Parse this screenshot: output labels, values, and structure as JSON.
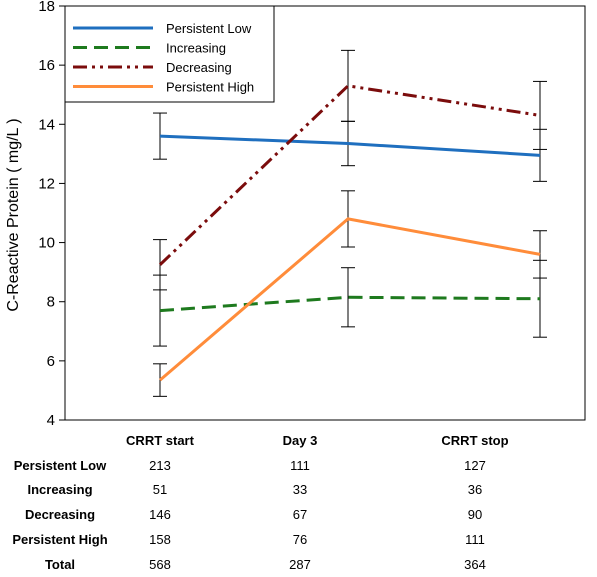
{
  "chart_data": {
    "type": "line",
    "title": "",
    "xlabel": "",
    "ylabel": "C-Reactive Protein ( mg/L )",
    "categories": [
      "CRRT start",
      "Day 3",
      "CRRT stop"
    ],
    "ylim": [
      4,
      18
    ],
    "yticks": [
      4,
      6,
      8,
      10,
      12,
      14,
      16,
      18
    ],
    "legend_position": "top-left",
    "series": [
      {
        "name": "Persistent Low",
        "values": [
          13.6,
          13.35,
          12.95
        ],
        "error": [
          0.78,
          0.75,
          0.88
        ],
        "color": "#1f6fbf",
        "dash": "solid"
      },
      {
        "name": "Increasing",
        "values": [
          7.7,
          8.15,
          8.1
        ],
        "error": [
          1.2,
          1.0,
          1.3
        ],
        "color": "#1e7a1e",
        "dash": "dashed"
      },
      {
        "name": "Decreasing",
        "values": [
          9.25,
          15.3,
          14.3
        ],
        "error": [
          0.85,
          1.2,
          1.15
        ],
        "color": "#7b0c0c",
        "dash": "dash-dot-dot"
      },
      {
        "name": "Persistent High",
        "values": [
          5.35,
          10.8,
          9.6
        ],
        "error": [
          0.55,
          0.95,
          0.8
        ],
        "color": "#ff8c3a",
        "dash": "solid"
      }
    ]
  },
  "table": {
    "columns": [
      "CRRT start",
      "Day 3",
      "CRRT stop"
    ],
    "rows": [
      {
        "label": "Persistent Low",
        "values": [
          "213",
          "111",
          "127"
        ]
      },
      {
        "label": "Increasing",
        "values": [
          "51",
          "33",
          "36"
        ]
      },
      {
        "label": "Decreasing",
        "values": [
          "146",
          "67",
          "90"
        ]
      },
      {
        "label": "Persistent High",
        "values": [
          "158",
          "76",
          "111"
        ]
      },
      {
        "label": "Total",
        "values": [
          "568",
          "287",
          "364"
        ]
      }
    ]
  }
}
